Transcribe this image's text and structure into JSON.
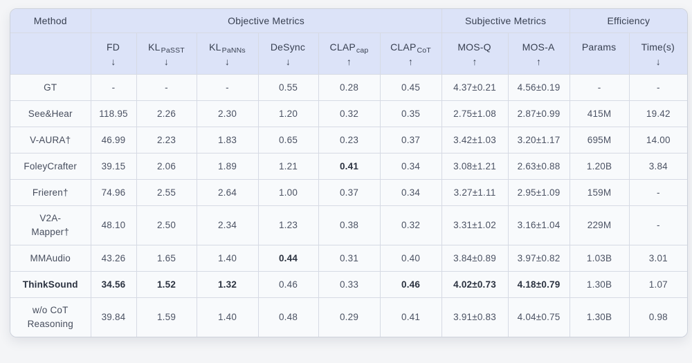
{
  "table": {
    "group_headers": [
      {
        "label": "Method",
        "colspan": 1
      },
      {
        "label": "Objective Metrics",
        "colspan": 6
      },
      {
        "label": "Subjective Metrics",
        "colspan": 2
      },
      {
        "label": "Efficiency",
        "colspan": 2
      }
    ],
    "columns": [
      {
        "label": "",
        "sub": "",
        "arrow": ""
      },
      {
        "label": "FD",
        "sub": "",
        "arrow": "↓"
      },
      {
        "label": "KL",
        "sub": "PaSST",
        "arrow": "↓"
      },
      {
        "label": "KL",
        "sub": "PaNNs",
        "arrow": "↓"
      },
      {
        "label": "DeSync",
        "sub": "",
        "arrow": "↓"
      },
      {
        "label": "CLAP",
        "sub": "cap",
        "arrow": "↑"
      },
      {
        "label": "CLAP",
        "sub": "CoT",
        "arrow": "↑"
      },
      {
        "label": "MOS-Q",
        "sub": "",
        "arrow": "↑"
      },
      {
        "label": "MOS-A",
        "sub": "",
        "arrow": "↑"
      },
      {
        "label": "Params",
        "sub": "",
        "arrow": ""
      },
      {
        "label": "Time(s)",
        "sub": "",
        "arrow": "↓"
      }
    ],
    "rows": [
      {
        "cells": [
          "GT",
          "-",
          "-",
          "-",
          "0.55",
          "0.28",
          "0.45",
          "4.37±0.21",
          "4.56±0.19",
          "-",
          "-"
        ],
        "bold": []
      },
      {
        "cells": [
          "See&Hear",
          "118.95",
          "2.26",
          "2.30",
          "1.20",
          "0.32",
          "0.35",
          "2.75±1.08",
          "2.87±0.99",
          "415M",
          "19.42"
        ],
        "bold": []
      },
      {
        "cells": [
          "V-AURA†",
          "46.99",
          "2.23",
          "1.83",
          "0.65",
          "0.23",
          "0.37",
          "3.42±1.03",
          "3.20±1.17",
          "695M",
          "14.00"
        ],
        "bold": []
      },
      {
        "cells": [
          "FoleyCrafter",
          "39.15",
          "2.06",
          "1.89",
          "1.21",
          "0.41",
          "0.34",
          "3.08±1.21",
          "2.63±0.88",
          "1.20B",
          "3.84"
        ],
        "bold": [
          5
        ]
      },
      {
        "cells": [
          "Frieren†",
          "74.96",
          "2.55",
          "2.64",
          "1.00",
          "0.37",
          "0.34",
          "3.27±1.11",
          "2.95±1.09",
          "159M",
          "-"
        ],
        "bold": []
      },
      {
        "cells": [
          "V2A-\nMapper†",
          "48.10",
          "2.50",
          "2.34",
          "1.23",
          "0.38",
          "0.32",
          "3.31±1.02",
          "3.16±1.04",
          "229M",
          "-"
        ],
        "bold": []
      },
      {
        "cells": [
          "MMAudio",
          "43.26",
          "1.65",
          "1.40",
          "0.44",
          "0.31",
          "0.40",
          "3.84±0.89",
          "3.97±0.82",
          "1.03B",
          "3.01"
        ],
        "bold": [
          4
        ]
      },
      {
        "cells": [
          "ThinkSound",
          "34.56",
          "1.52",
          "1.32",
          "0.46",
          "0.33",
          "0.46",
          "4.02±0.73",
          "4.18±0.79",
          "1.30B",
          "1.07"
        ],
        "bold": [
          0,
          1,
          2,
          3,
          6,
          7,
          8
        ],
        "top_divider": true
      },
      {
        "cells": [
          "w/o CoT\nReasoning",
          "39.84",
          "1.59",
          "1.40",
          "0.48",
          "0.29",
          "0.41",
          "3.91±0.83",
          "4.04±0.75",
          "1.30B",
          "0.98"
        ],
        "bold": []
      }
    ]
  }
}
